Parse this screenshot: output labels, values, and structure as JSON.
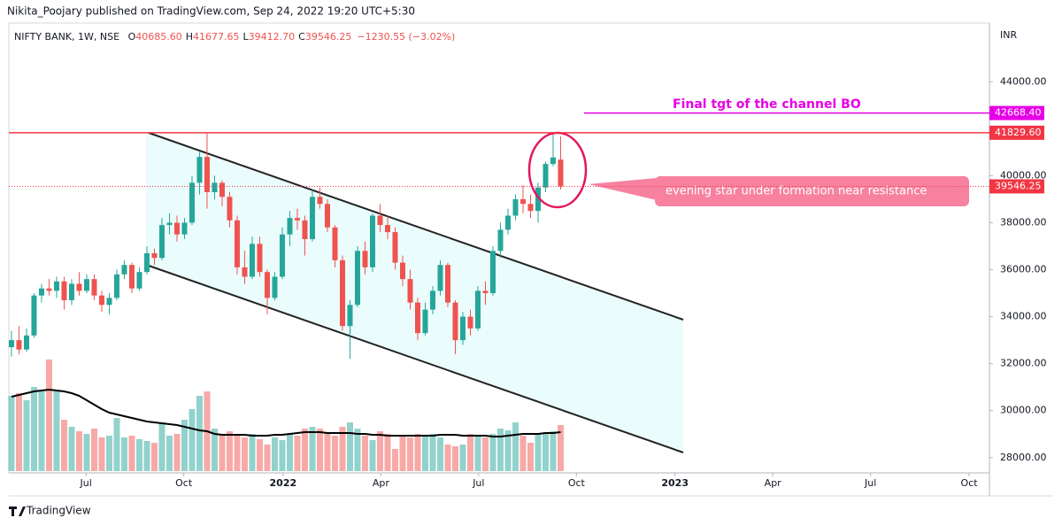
{
  "header": {
    "publisher": "Nikita_Poojary published on TradingView.com, Sep 24, 2022 19:20 UTC+5:30",
    "brand": "TradingView"
  },
  "chart_data": {
    "type": "candlestick",
    "legend": {
      "symbol": "NIFTY BANK, 1W, NSE",
      "items": [
        {
          "key": "O",
          "value": "40685.60"
        },
        {
          "key": "H",
          "value": "41677.65"
        },
        {
          "key": "L",
          "value": "39412.70"
        },
        {
          "key": "C",
          "value": "39546.25"
        }
      ],
      "change": "−1230.55 (−3.02%)"
    },
    "currency": "INR",
    "up_color": "#26a69a",
    "down_color": "#ef5350",
    "xlim": [
      -0.35,
      130
    ],
    "xticks": [
      {
        "value": 9.9,
        "label": "Jul"
      },
      {
        "value": 22.9,
        "label": "Oct"
      },
      {
        "value": 36.1,
        "label": "2022"
      },
      {
        "value": 49.1,
        "label": "Apr"
      },
      {
        "value": 62.1,
        "label": "Jul"
      },
      {
        "value": 75.1,
        "label": "Oct"
      },
      {
        "value": 88.2,
        "label": "2023"
      },
      {
        "value": 101.2,
        "label": "Apr"
      },
      {
        "value": 114.2,
        "label": "Jul"
      },
      {
        "value": 127.3,
        "label": "Oct"
      }
    ],
    "ylim": [
      27350,
      46500
    ],
    "yticks": [
      {
        "value": 28000,
        "label": "28000.00"
      },
      {
        "value": 30000,
        "label": "30000.00"
      },
      {
        "value": 32000,
        "label": "32000.00"
      },
      {
        "value": 34000,
        "label": "34000.00"
      },
      {
        "value": 36000,
        "label": "36000.00"
      },
      {
        "value": 38000,
        "label": "38000.00"
      },
      {
        "value": 40000,
        "label": "40000.00"
      },
      {
        "value": 44000,
        "label": "44000.00"
      }
    ],
    "ohlc": [
      [
        32700,
        33400,
        32300,
        33000
      ],
      [
        33000,
        33600,
        32400,
        32600
      ],
      [
        32600,
        33500,
        32500,
        33200
      ],
      [
        33200,
        35000,
        33100,
        34900
      ],
      [
        34900,
        35400,
        34600,
        35200
      ],
      [
        35200,
        35600,
        34900,
        35100
      ],
      [
        35100,
        35700,
        34800,
        35500
      ],
      [
        35500,
        35700,
        34300,
        34700
      ],
      [
        34700,
        35600,
        34500,
        35400
      ],
      [
        35400,
        35900,
        34900,
        35100
      ],
      [
        35100,
        35800,
        35000,
        35600
      ],
      [
        35600,
        35800,
        34700,
        34900
      ],
      [
        34900,
        35100,
        34200,
        34500
      ],
      [
        34500,
        35000,
        34100,
        34800
      ],
      [
        34800,
        36000,
        34700,
        35800
      ],
      [
        35800,
        36400,
        35600,
        36200
      ],
      [
        36200,
        36300,
        35000,
        35200
      ],
      [
        35200,
        36100,
        35100,
        35900
      ],
      [
        35900,
        37000,
        35800,
        36700
      ],
      [
        36700,
        36900,
        36200,
        36500
      ],
      [
        36500,
        38200,
        36400,
        37900
      ],
      [
        37900,
        38400,
        37500,
        38000
      ],
      [
        38000,
        38300,
        37200,
        37500
      ],
      [
        37500,
        38200,
        37300,
        38000
      ],
      [
        38000,
        40000,
        37900,
        39700
      ],
      [
        39700,
        41000,
        39200,
        40800
      ],
      [
        40800,
        41829.6,
        38600,
        39300
      ],
      [
        39300,
        40000,
        39000,
        39700
      ],
      [
        39700,
        39800,
        38700,
        39100
      ],
      [
        39100,
        39300,
        37800,
        38100
      ],
      [
        38100,
        38300,
        35800,
        36100
      ],
      [
        36100,
        36800,
        35400,
        35700
      ],
      [
        35700,
        37400,
        35600,
        37100
      ],
      [
        37100,
        37400,
        35700,
        35900
      ],
      [
        35900,
        36000,
        34100,
        34800
      ],
      [
        34800,
        35900,
        34700,
        35700
      ],
      [
        35700,
        37800,
        35600,
        37500
      ],
      [
        37500,
        38500,
        37000,
        38200
      ],
      [
        38200,
        38600,
        37700,
        38100
      ],
      [
        38100,
        38300,
        36600,
        37300
      ],
      [
        37300,
        39400,
        37200,
        39100
      ],
      [
        39100,
        39500,
        38600,
        38800
      ],
      [
        38800,
        39000,
        37600,
        37800
      ],
      [
        37800,
        37900,
        36100,
        36400
      ],
      [
        36400,
        36600,
        33400,
        33600
      ],
      [
        33600,
        34700,
        32200,
        34500
      ],
      [
        34500,
        37000,
        34400,
        36800
      ],
      [
        36800,
        37200,
        35800,
        36100
      ],
      [
        36100,
        38400,
        35900,
        38300
      ],
      [
        38300,
        38800,
        37600,
        37900
      ],
      [
        37900,
        38300,
        37300,
        37600
      ],
      [
        37600,
        37800,
        36000,
        36300
      ],
      [
        36300,
        36600,
        35300,
        35600
      ],
      [
        35600,
        36000,
        34300,
        34600
      ],
      [
        34600,
        34800,
        33000,
        33300
      ],
      [
        33300,
        34600,
        33200,
        34300
      ],
      [
        34300,
        35300,
        34100,
        35100
      ],
      [
        35100,
        36400,
        34900,
        36200
      ],
      [
        36200,
        36300,
        34400,
        34600
      ],
      [
        34600,
        34700,
        32400,
        33000
      ],
      [
        33000,
        34200,
        32800,
        34000
      ],
      [
        34000,
        34300,
        33200,
        33500
      ],
      [
        33500,
        35300,
        33400,
        35100
      ],
      [
        35100,
        35500,
        34500,
        35000
      ],
      [
        35000,
        37000,
        34900,
        36800
      ],
      [
        36800,
        38000,
        36500,
        37700
      ],
      [
        37700,
        38600,
        37500,
        38300
      ],
      [
        38300,
        39200,
        38100,
        39000
      ],
      [
        39000,
        39600,
        38400,
        38800
      ],
      [
        38800,
        39200,
        38200,
        38500
      ],
      [
        38500,
        39700,
        38000,
        39500
      ],
      [
        39500,
        40600,
        39300,
        40500
      ],
      [
        40500,
        41840,
        40400,
        40776.8
      ],
      [
        40685.6,
        41677.65,
        39412.7,
        39546.25
      ]
    ],
    "volume": [
      85,
      88,
      80,
      95,
      90,
      126,
      90,
      58,
      50,
      45,
      42,
      48,
      38,
      40,
      60,
      38,
      40,
      36,
      34,
      32,
      55,
      40,
      42,
      58,
      70,
      85,
      90,
      48,
      42,
      45,
      40,
      38,
      42,
      36,
      30,
      38,
      35,
      42,
      40,
      48,
      50,
      48,
      44,
      40,
      50,
      55,
      48,
      40,
      35,
      45,
      42,
      25,
      40,
      38,
      42,
      40,
      42,
      38,
      30,
      28,
      30,
      42,
      40,
      38,
      42,
      48,
      46,
      55,
      40,
      32,
      42,
      44,
      45,
      52
    ],
    "volume_ma": {
      "color": "#000000",
      "values": [
        84,
        86,
        88,
        90,
        91,
        92,
        91,
        90,
        88,
        85,
        80,
        75,
        70,
        66,
        64,
        62,
        60,
        58,
        56,
        55,
        54,
        53,
        52,
        50,
        48,
        46,
        45,
        42,
        41,
        41,
        41,
        41,
        40,
        40,
        40,
        41,
        41,
        42,
        43,
        44,
        44,
        44,
        43,
        43,
        43,
        43,
        42,
        42,
        41,
        41,
        40,
        40,
        40,
        40,
        40,
        40,
        40,
        41,
        41,
        41,
        40,
        40,
        40,
        40,
        39,
        39,
        40,
        41,
        42,
        42,
        42,
        43,
        43,
        44
      ]
    },
    "price_lines": [
      {
        "value": 42668.4,
        "label": "42668.40",
        "color": "#e600e6",
        "style": "solid"
      },
      {
        "value": 41829.6,
        "label": "41829.60",
        "color": "#f23645",
        "style": "solid"
      },
      {
        "value": 39546.25,
        "label": "39546.25",
        "color": "#f23645",
        "style": "dotted"
      }
    ],
    "annotations": {
      "target": "Final tgt of the channel BO",
      "callout": "evening star under formation near resistance"
    }
  }
}
